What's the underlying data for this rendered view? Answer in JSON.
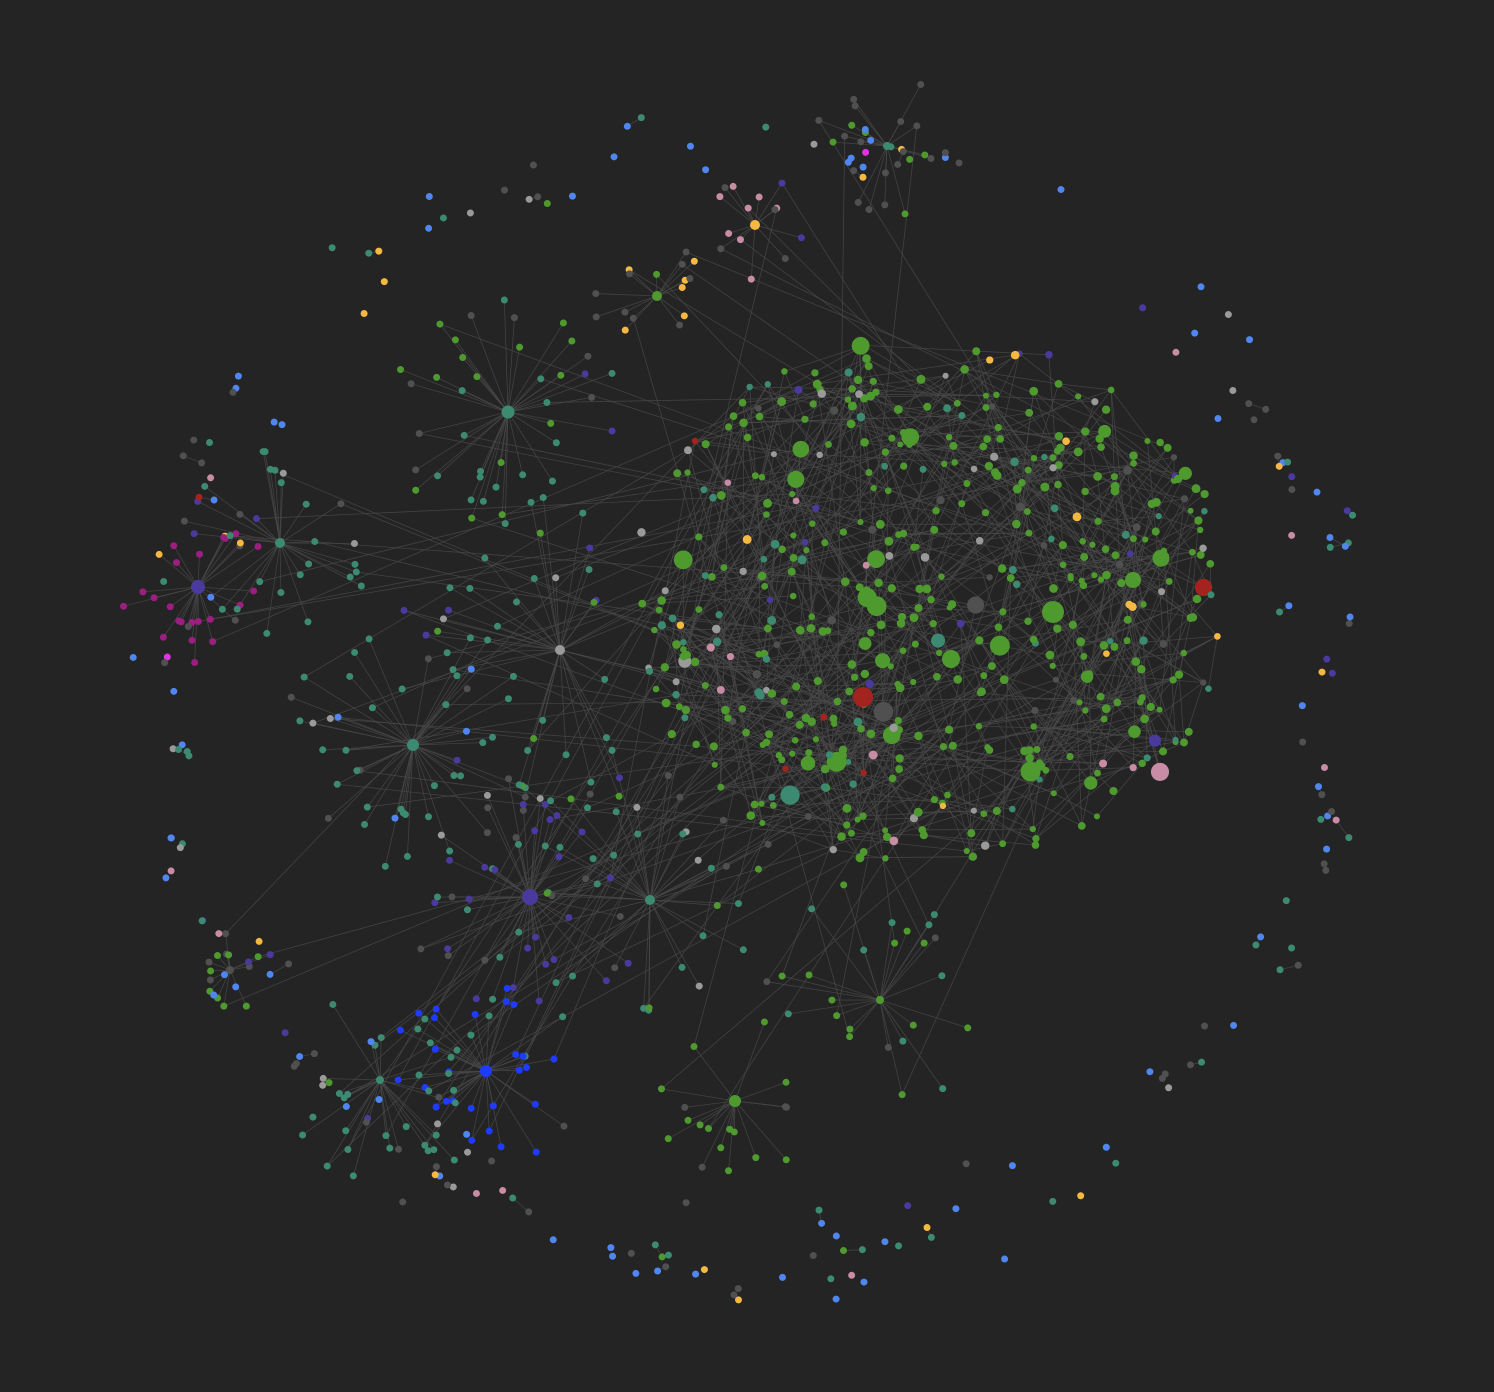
{
  "view": "graph-view",
  "colors": {
    "background": "#242424",
    "edge": "#4a4a4a",
    "palette": {
      "green": "#4f9a2f",
      "teal": "#3c8a72",
      "gray": "#9a9a9a",
      "dark_gray": "#505050",
      "blue": "#4f86f0",
      "deep_blue": "#1e3bff",
      "purple": "#4b3a9e",
      "magenta": "#9a1f80",
      "pink": "#c88ca4",
      "yellow": "#f5b942",
      "red": "#a3231f",
      "bright_magenta": "#e233e2",
      "violet": "#7b5cf0",
      "rose": "#c08a84"
    }
  }
}
